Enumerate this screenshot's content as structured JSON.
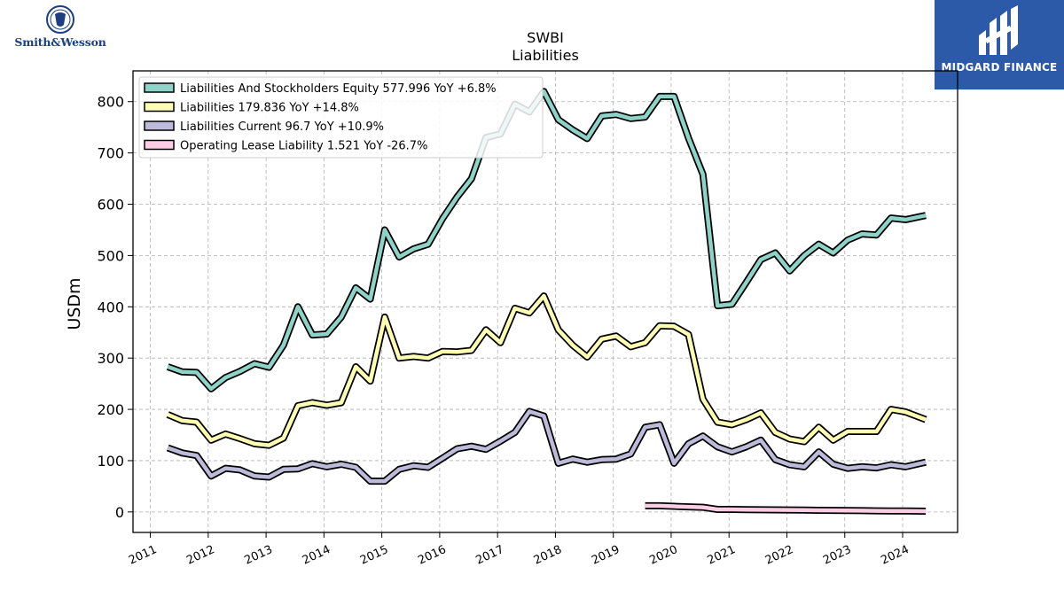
{
  "logos": {
    "left_brand": "Smith&Wesson",
    "right_brand": "MIDGARD FINANCE"
  },
  "colors": {
    "teal": "#8dd3c7",
    "yellow": "#ffffb3",
    "lavender": "#bebada",
    "pink": "#fccde5",
    "grid": "#b0b0b0",
    "right_logo_bg": "#2c5aa8",
    "left_logo": "#1b3f82"
  },
  "chart_data": {
    "type": "line",
    "title": "SWBI",
    "subtitle": "Liabilities",
    "ylabel": "USDm",
    "xlabel": "",
    "xlim": [
      2010.7,
      2024.95
    ],
    "ylim": [
      -40,
      860
    ],
    "grid": true,
    "legend_position": "top-left",
    "x_ticks": [
      "2011",
      "2012",
      "2013",
      "2014",
      "2015",
      "2016",
      "2017",
      "2018",
      "2019",
      "2020",
      "2021",
      "2022",
      "2023",
      "2024"
    ],
    "y_ticks": [
      "0",
      "100",
      "200",
      "300",
      "400",
      "500",
      "600",
      "700",
      "800"
    ],
    "series": [
      {
        "name": "Liabilities And Stockholders Equity",
        "legend": "Liabilities And Stockholders Equity  577.996 YoY +6.8%",
        "color": "#8dd3c7",
        "points": [
          [
            2011.3,
            283
          ],
          [
            2011.55,
            273
          ],
          [
            2011.8,
            272
          ],
          [
            2012.05,
            240
          ],
          [
            2012.3,
            262
          ],
          [
            2012.55,
            274
          ],
          [
            2012.8,
            289
          ],
          [
            2013.05,
            282
          ],
          [
            2013.3,
            325
          ],
          [
            2013.55,
            400
          ],
          [
            2013.8,
            345
          ],
          [
            2014.05,
            347
          ],
          [
            2014.3,
            380
          ],
          [
            2014.55,
            437
          ],
          [
            2014.8,
            415
          ],
          [
            2015.05,
            550
          ],
          [
            2015.3,
            497
          ],
          [
            2015.55,
            513
          ],
          [
            2015.8,
            522
          ],
          [
            2016.05,
            572
          ],
          [
            2016.3,
            614
          ],
          [
            2016.55,
            650
          ],
          [
            2016.8,
            730
          ],
          [
            2017.05,
            737
          ],
          [
            2017.3,
            795
          ],
          [
            2017.55,
            780
          ],
          [
            2017.8,
            820
          ],
          [
            2018.05,
            765
          ],
          [
            2018.3,
            745
          ],
          [
            2018.55,
            728
          ],
          [
            2018.8,
            772
          ],
          [
            2019.05,
            775
          ],
          [
            2019.3,
            767
          ],
          [
            2019.55,
            770
          ],
          [
            2019.8,
            810
          ],
          [
            2020.05,
            810
          ],
          [
            2020.3,
            729
          ],
          [
            2020.55,
            658
          ],
          [
            2020.8,
            402
          ],
          [
            2021.05,
            405
          ],
          [
            2021.3,
            448
          ],
          [
            2021.55,
            492
          ],
          [
            2021.8,
            505
          ],
          [
            2022.05,
            470
          ],
          [
            2022.3,
            500
          ],
          [
            2022.55,
            522
          ],
          [
            2022.8,
            505
          ],
          [
            2023.05,
            530
          ],
          [
            2023.3,
            542
          ],
          [
            2023.55,
            540
          ],
          [
            2023.8,
            573
          ],
          [
            2024.05,
            570
          ],
          [
            2024.4,
            578
          ]
        ]
      },
      {
        "name": "Liabilities",
        "legend": "Liabilities  179.836 YoY +14.8%",
        "color": "#ffffb3",
        "points": [
          [
            2011.3,
            190
          ],
          [
            2011.55,
            178
          ],
          [
            2011.8,
            175
          ],
          [
            2012.05,
            140
          ],
          [
            2012.3,
            152
          ],
          [
            2012.55,
            143
          ],
          [
            2012.8,
            133
          ],
          [
            2013.05,
            130
          ],
          [
            2013.3,
            144
          ],
          [
            2013.55,
            207
          ],
          [
            2013.8,
            213
          ],
          [
            2014.05,
            208
          ],
          [
            2014.3,
            213
          ],
          [
            2014.55,
            283
          ],
          [
            2014.8,
            255
          ],
          [
            2015.05,
            380
          ],
          [
            2015.3,
            300
          ],
          [
            2015.55,
            303
          ],
          [
            2015.8,
            300
          ],
          [
            2016.05,
            313
          ],
          [
            2016.3,
            312
          ],
          [
            2016.55,
            315
          ],
          [
            2016.8,
            355
          ],
          [
            2017.05,
            330
          ],
          [
            2017.3,
            397
          ],
          [
            2017.55,
            388
          ],
          [
            2017.8,
            421
          ],
          [
            2018.05,
            355
          ],
          [
            2018.3,
            325
          ],
          [
            2018.55,
            302
          ],
          [
            2018.8,
            337
          ],
          [
            2019.05,
            343
          ],
          [
            2019.3,
            322
          ],
          [
            2019.55,
            330
          ],
          [
            2019.8,
            363
          ],
          [
            2020.05,
            362
          ],
          [
            2020.3,
            346
          ],
          [
            2020.55,
            220
          ],
          [
            2020.8,
            175
          ],
          [
            2021.05,
            170
          ],
          [
            2021.3,
            180
          ],
          [
            2021.55,
            193
          ],
          [
            2021.8,
            155
          ],
          [
            2022.05,
            142
          ],
          [
            2022.3,
            137
          ],
          [
            2022.55,
            165
          ],
          [
            2022.8,
            140
          ],
          [
            2023.05,
            157
          ],
          [
            2023.3,
            157
          ],
          [
            2023.55,
            157
          ],
          [
            2023.8,
            200
          ],
          [
            2024.05,
            195
          ],
          [
            2024.4,
            180
          ]
        ]
      },
      {
        "name": "Liabilities Current",
        "legend": "Liabilities Current  96.7 YoY +10.9%",
        "color": "#bebada",
        "points": [
          [
            2011.3,
            125
          ],
          [
            2011.55,
            115
          ],
          [
            2011.8,
            110
          ],
          [
            2012.05,
            70
          ],
          [
            2012.3,
            85
          ],
          [
            2012.55,
            82
          ],
          [
            2012.8,
            70
          ],
          [
            2013.05,
            68
          ],
          [
            2013.3,
            83
          ],
          [
            2013.55,
            84
          ],
          [
            2013.8,
            94
          ],
          [
            2014.05,
            88
          ],
          [
            2014.3,
            93
          ],
          [
            2014.55,
            87
          ],
          [
            2014.8,
            60
          ],
          [
            2015.05,
            60
          ],
          [
            2015.3,
            83
          ],
          [
            2015.55,
            90
          ],
          [
            2015.8,
            87
          ],
          [
            2016.05,
            105
          ],
          [
            2016.3,
            123
          ],
          [
            2016.55,
            128
          ],
          [
            2016.8,
            122
          ],
          [
            2017.05,
            138
          ],
          [
            2017.3,
            155
          ],
          [
            2017.55,
            196
          ],
          [
            2017.8,
            187
          ],
          [
            2018.05,
            95
          ],
          [
            2018.3,
            103
          ],
          [
            2018.55,
            97
          ],
          [
            2018.8,
            102
          ],
          [
            2019.05,
            103
          ],
          [
            2019.3,
            113
          ],
          [
            2019.55,
            165
          ],
          [
            2019.8,
            170
          ],
          [
            2020.05,
            95
          ],
          [
            2020.3,
            133
          ],
          [
            2020.55,
            148
          ],
          [
            2020.8,
            127
          ],
          [
            2021.05,
            117
          ],
          [
            2021.3,
            127
          ],
          [
            2021.55,
            140
          ],
          [
            2021.8,
            102
          ],
          [
            2022.05,
            92
          ],
          [
            2022.3,
            88
          ],
          [
            2022.55,
            117
          ],
          [
            2022.8,
            93
          ],
          [
            2023.05,
            85
          ],
          [
            2023.3,
            88
          ],
          [
            2023.55,
            86
          ],
          [
            2023.8,
            92
          ],
          [
            2024.05,
            88
          ],
          [
            2024.4,
            97
          ]
        ]
      },
      {
        "name": "Operating Lease Liability",
        "legend": "Operating Lease Liability  1.521 YoY -26.7%",
        "color": "#fccde5",
        "points": [
          [
            2019.55,
            12
          ],
          [
            2019.8,
            12
          ],
          [
            2020.05,
            11
          ],
          [
            2020.3,
            10
          ],
          [
            2020.55,
            9
          ],
          [
            2020.8,
            5
          ],
          [
            2021.05,
            5
          ],
          [
            2021.3,
            4.5
          ],
          [
            2021.55,
            4.3
          ],
          [
            2021.8,
            4
          ],
          [
            2022.05,
            3.8
          ],
          [
            2022.3,
            3.5
          ],
          [
            2022.55,
            3.2
          ],
          [
            2022.8,
            3
          ],
          [
            2023.05,
            2.8
          ],
          [
            2023.3,
            2.5
          ],
          [
            2023.55,
            2.2
          ],
          [
            2023.8,
            2
          ],
          [
            2024.05,
            1.8
          ],
          [
            2024.4,
            1.5
          ]
        ]
      }
    ]
  }
}
